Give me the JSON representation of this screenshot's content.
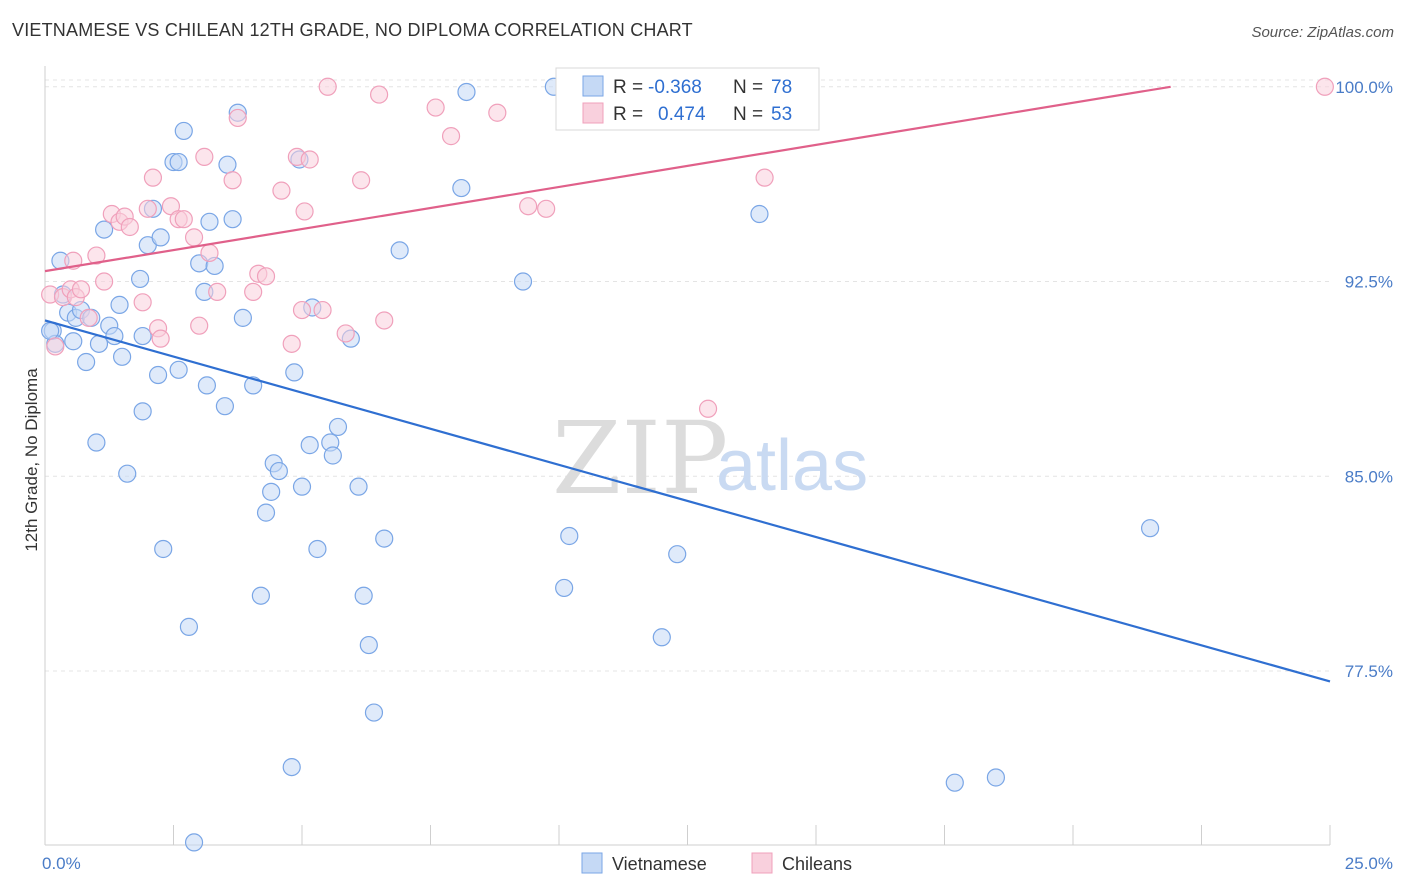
{
  "chart_data": {
    "type": "scatter",
    "title": "VIETNAMESE VS CHILEAN 12TH GRADE, NO DIPLOMA CORRELATION CHART",
    "source": "Source: ZipAtlas.com",
    "ylabel": "12th Grade, No Diploma",
    "xlim": [
      0,
      25
    ],
    "ylim": [
      70.8,
      100.8
    ],
    "x_tick_labels": [
      "0.0%",
      "25.0%"
    ],
    "y_ticks": [
      {
        "value": 100.0,
        "label": "100.0%"
      },
      {
        "value": 92.5,
        "label": "92.5%"
      },
      {
        "value": 85.0,
        "label": "85.0%"
      },
      {
        "value": 77.5,
        "label": "77.5%"
      }
    ],
    "grid": true,
    "watermark": {
      "zip": "ZIP",
      "atlas": "atlas"
    },
    "legend": {
      "r_label": "R =",
      "n_label": "N =",
      "entries": [
        {
          "r": "-0.368",
          "n": "78"
        },
        {
          "r": "0.474",
          "n": "53"
        }
      ]
    },
    "series": [
      {
        "name": "Vietnamese",
        "color": "#7aa6e6",
        "fill": "#c5d9f5",
        "line_color": "#2f6fd1",
        "trend": {
          "x": [
            0,
            25
          ],
          "y": [
            91.0,
            77.1
          ]
        },
        "points": [
          [
            0.15,
            90.6
          ],
          [
            0.2,
            90.1
          ],
          [
            0.3,
            93.3
          ],
          [
            0.35,
            92.0
          ],
          [
            0.45,
            91.3
          ],
          [
            0.55,
            90.2
          ],
          [
            0.6,
            91.1
          ],
          [
            0.7,
            91.4
          ],
          [
            0.8,
            89.4
          ],
          [
            0.9,
            91.1
          ],
          [
            1.0,
            86.3
          ],
          [
            1.05,
            90.1
          ],
          [
            1.15,
            94.5
          ],
          [
            1.25,
            90.8
          ],
          [
            1.35,
            90.4
          ],
          [
            1.45,
            91.6
          ],
          [
            1.5,
            89.6
          ],
          [
            1.6,
            85.1
          ],
          [
            1.85,
            92.6
          ],
          [
            1.9,
            87.5
          ],
          [
            2.0,
            93.9
          ],
          [
            2.1,
            95.3
          ],
          [
            2.2,
            88.9
          ],
          [
            2.25,
            94.2
          ],
          [
            2.3,
            82.2
          ],
          [
            2.5,
            97.1
          ],
          [
            2.6,
            97.1
          ],
          [
            2.6,
            89.1
          ],
          [
            2.7,
            98.3
          ],
          [
            2.8,
            79.2
          ],
          [
            2.9,
            70.9
          ],
          [
            3.0,
            93.2
          ],
          [
            3.1,
            92.1
          ],
          [
            3.15,
            88.5
          ],
          [
            3.2,
            94.8
          ],
          [
            3.3,
            93.1
          ],
          [
            3.5,
            87.7
          ],
          [
            3.55,
            97.0
          ],
          [
            3.65,
            94.9
          ],
          [
            3.75,
            99.0
          ],
          [
            3.85,
            91.1
          ],
          [
            4.05,
            88.5
          ],
          [
            4.2,
            80.4
          ],
          [
            4.3,
            83.6
          ],
          [
            4.4,
            84.4
          ],
          [
            4.45,
            85.5
          ],
          [
            4.55,
            85.2
          ],
          [
            4.8,
            73.8
          ],
          [
            4.85,
            89.0
          ],
          [
            4.95,
            97.2
          ],
          [
            5.0,
            84.6
          ],
          [
            5.15,
            86.2
          ],
          [
            5.2,
            91.5
          ],
          [
            5.3,
            82.2
          ],
          [
            5.55,
            86.3
          ],
          [
            5.6,
            85.8
          ],
          [
            5.7,
            86.9
          ],
          [
            5.95,
            90.3
          ],
          [
            6.1,
            84.6
          ],
          [
            6.2,
            80.4
          ],
          [
            6.3,
            78.5
          ],
          [
            6.4,
            75.9
          ],
          [
            6.6,
            82.6
          ],
          [
            6.9,
            93.7
          ],
          [
            8.1,
            96.1
          ],
          [
            8.2,
            99.8
          ],
          [
            9.3,
            92.5
          ],
          [
            9.9,
            100.0
          ],
          [
            10.1,
            80.7
          ],
          [
            10.2,
            82.7
          ],
          [
            12.0,
            78.8
          ],
          [
            12.3,
            82.0
          ],
          [
            13.9,
            95.1
          ],
          [
            17.7,
            73.2
          ],
          [
            18.5,
            73.4
          ],
          [
            21.5,
            83.0
          ],
          [
            0.1,
            90.6
          ],
          [
            1.9,
            90.4
          ]
        ]
      },
      {
        "name": "Chileans",
        "color": "#f0a0bb",
        "fill": "#f9d0dd",
        "line_color": "#e0608a",
        "trend": {
          "x": [
            0,
            21.9
          ],
          "y": [
            92.9,
            100.0
          ]
        },
        "points": [
          [
            0.1,
            92.0
          ],
          [
            0.2,
            90.0
          ],
          [
            0.35,
            91.9
          ],
          [
            0.5,
            92.2
          ],
          [
            0.55,
            93.3
          ],
          [
            0.6,
            91.9
          ],
          [
            0.7,
            92.2
          ],
          [
            0.85,
            91.1
          ],
          [
            1.0,
            93.5
          ],
          [
            1.15,
            92.5
          ],
          [
            1.3,
            95.1
          ],
          [
            1.45,
            94.8
          ],
          [
            1.55,
            95.0
          ],
          [
            1.65,
            94.6
          ],
          [
            1.9,
            91.7
          ],
          [
            2.0,
            95.3
          ],
          [
            2.1,
            96.5
          ],
          [
            2.2,
            90.7
          ],
          [
            2.25,
            90.3
          ],
          [
            2.45,
            95.4
          ],
          [
            2.6,
            94.9
          ],
          [
            2.7,
            94.9
          ],
          [
            2.9,
            94.2
          ],
          [
            3.0,
            90.8
          ],
          [
            3.1,
            97.3
          ],
          [
            3.2,
            93.6
          ],
          [
            3.35,
            92.1
          ],
          [
            3.65,
            96.4
          ],
          [
            3.75,
            98.8
          ],
          [
            4.05,
            92.1
          ],
          [
            4.15,
            92.8
          ],
          [
            4.3,
            92.7
          ],
          [
            4.6,
            96.0
          ],
          [
            4.8,
            90.1
          ],
          [
            4.9,
            97.3
          ],
          [
            5.0,
            91.4
          ],
          [
            5.05,
            95.2
          ],
          [
            5.15,
            97.2
          ],
          [
            5.4,
            91.4
          ],
          [
            5.5,
            100.0
          ],
          [
            5.85,
            90.5
          ],
          [
            6.15,
            96.4
          ],
          [
            6.5,
            99.7
          ],
          [
            6.6,
            91.0
          ],
          [
            7.6,
            99.2
          ],
          [
            7.9,
            98.1
          ],
          [
            8.8,
            99.0
          ],
          [
            9.4,
            95.4
          ],
          [
            9.75,
            95.3
          ],
          [
            14.0,
            96.5
          ],
          [
            12.9,
            87.6
          ],
          [
            24.9,
            100.0
          ],
          [
            14.0,
            100.0
          ]
        ]
      }
    ]
  }
}
